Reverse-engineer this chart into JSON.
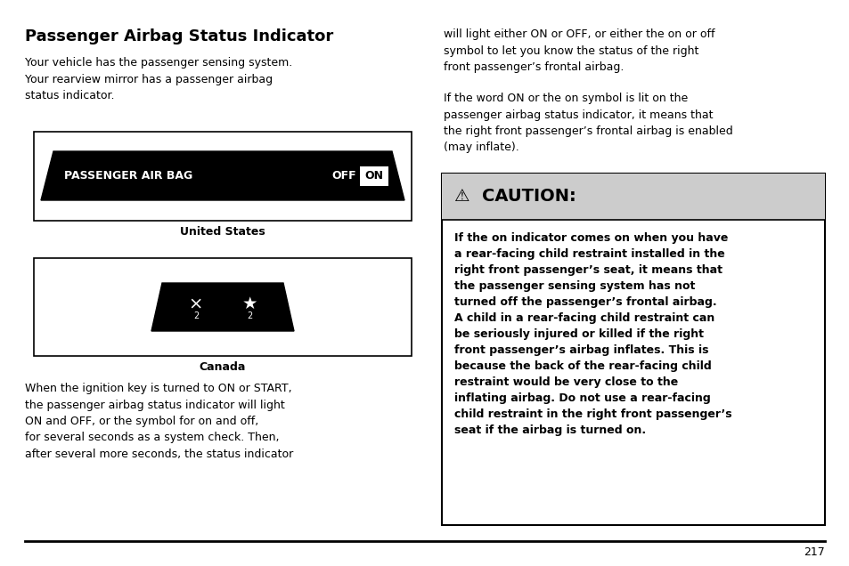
{
  "bg_color": "#ffffff",
  "title_text": "Passenger Airbag Status Indicator",
  "left_para1": "Your vehicle has the passenger sensing system.\nYour rearview mirror has a passenger airbag\nstatus indicator.",
  "left_label_us": "United States",
  "left_label_ca": "Canada",
  "left_para2": "When the ignition key is turned to ON or START,\nthe passenger airbag status indicator will light\nON and OFF, or the symbol for on and off,\nfor several seconds as a system check. Then,\nafter several more seconds, the status indicator",
  "right_para1": "will light either ON or OFF, or either the on or off\nsymbol to let you know the status of the right\nfront passenger’s frontal airbag.",
  "right_para2": "If the word ON or the on symbol is lit on the\npassenger airbag status indicator, it means that\nthe right front passenger’s frontal airbag is enabled\n(may inflate).",
  "caution_header": "⚠  CAUTION:",
  "caution_body": "If the on indicator comes on when you have\na rear-facing child restraint installed in the\nright front passenger’s seat, it means that\nthe passenger sensing system has not\nturned off the passenger’s frontal airbag.\nA child in a rear-facing child restraint can\nbe seriously injured or killed if the right\nfront passenger’s airbag inflates. This is\nbecause the back of the rear-facing child\nrestraint would be very close to the\ninflating airbag. Do not use a rear-facing\nchild restraint in the right front passenger’s\nseat if the airbag is turned on.",
  "page_number": "217"
}
